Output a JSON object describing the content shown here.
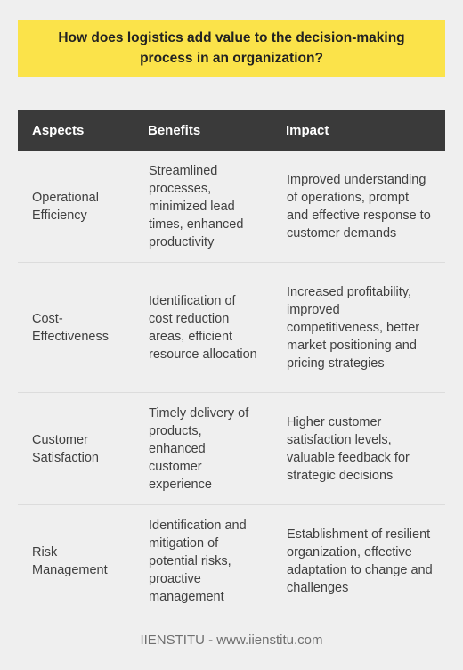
{
  "title": "How does logistics add value to the decision-making process in an organization?",
  "table": {
    "headers": [
      "Aspects",
      "Benefits",
      "Impact"
    ],
    "rows": [
      {
        "aspect": "Operational Efficiency",
        "benefits": "Streamlined processes, minimized lead times, enhanced productivity",
        "impact": "Improved understanding of operations, prompt and effective response to customer demands"
      },
      {
        "aspect": "Cost-Effectiveness",
        "benefits": "Identification of cost reduction areas, efficient resource allocation",
        "impact": "Increased profitability, improved competitiveness, better market positioning and pricing strategies"
      },
      {
        "aspect": "Customer Satisfaction",
        "benefits": "Timely delivery of products, enhanced customer experience",
        "impact": "Higher customer satisfaction levels, valuable feedback for strategic decisions"
      },
      {
        "aspect": "Risk Management",
        "benefits": "Identification and mitigation of potential risks, proactive management",
        "impact": "Establishment of resilient organization, effective adaptation to change and challenges"
      }
    ]
  },
  "footer": "IIENSTITU - www.iienstitu.com"
}
